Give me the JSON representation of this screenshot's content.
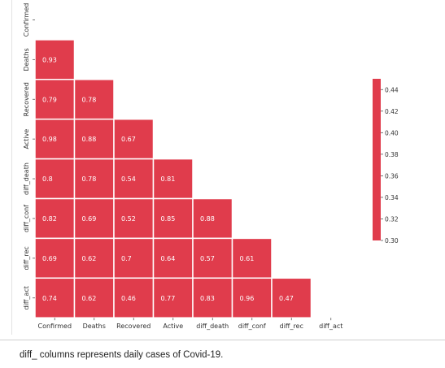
{
  "chart_data": {
    "type": "heatmap",
    "labels": [
      "Confirmed",
      "Deaths",
      "Recovered",
      "Active",
      "diff_death",
      "diff_conf",
      "diff_rec",
      "diff_act"
    ],
    "values": [
      [],
      [
        "0.93"
      ],
      [
        "0.79",
        "0.78"
      ],
      [
        "0.98",
        "0.88",
        "0.67"
      ],
      [
        "0.8",
        "0.78",
        "0.54",
        "0.81"
      ],
      [
        "0.82",
        "0.69",
        "0.52",
        "0.85",
        "0.88"
      ],
      [
        "0.69",
        "0.62",
        "0.7",
        "0.64",
        "0.57",
        "0.61"
      ],
      [
        "0.74",
        "0.62",
        "0.46",
        "0.77",
        "0.83",
        "0.96",
        "0.47"
      ]
    ],
    "mask": "upper-triangle",
    "cell_color": "#e03c4c",
    "colorbar": {
      "ticks": [
        "0.44",
        "0.42",
        "0.40",
        "0.38",
        "0.36",
        "0.34",
        "0.32",
        "0.30"
      ],
      "range": [
        0.3,
        0.45
      ]
    }
  },
  "caption": "diff_ columns represents daily cases of Covid-19."
}
